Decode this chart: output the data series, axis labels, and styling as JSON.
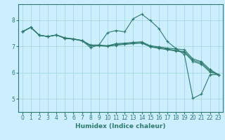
{
  "title": "",
  "xlabel": "Humidex (Indice chaleur)",
  "bg_color": "#cceeff",
  "line_color": "#2e7b6e",
  "marker_color": "#2e7b6e",
  "xlim": [
    -0.5,
    23.5
  ],
  "ylim": [
    4.5,
    8.6
  ],
  "yticks": [
    5,
    6,
    7,
    8
  ],
  "xticks": [
    0,
    1,
    2,
    3,
    4,
    5,
    6,
    7,
    8,
    9,
    10,
    11,
    12,
    13,
    14,
    15,
    16,
    17,
    18,
    19,
    20,
    21,
    22,
    23
  ],
  "grid_color": "#aadddd",
  "curves": [
    {
      "x": [
        0,
        1,
        2,
        3,
        4,
        5,
        6,
        7,
        8,
        9,
        10,
        11,
        12,
        13,
        14,
        15,
        16,
        17,
        18,
        19,
        20,
        21,
        22,
        23
      ],
      "y": [
        7.55,
        7.72,
        7.42,
        7.37,
        7.43,
        7.32,
        7.28,
        7.22,
        6.95,
        7.05,
        7.52,
        7.6,
        7.55,
        8.05,
        8.22,
        7.98,
        7.68,
        7.18,
        6.92,
        6.68,
        5.02,
        5.18,
        5.92,
        5.92
      ]
    },
    {
      "x": [
        0,
        1,
        2,
        3,
        4,
        5,
        6,
        7,
        8,
        9,
        10,
        11,
        12,
        13,
        14,
        15,
        16,
        17,
        18,
        19,
        20,
        21,
        22,
        23
      ],
      "y": [
        7.55,
        7.72,
        7.42,
        7.37,
        7.43,
        7.32,
        7.28,
        7.22,
        7.05,
        7.05,
        7.02,
        7.1,
        7.12,
        7.15,
        7.17,
        7.02,
        6.98,
        6.93,
        6.9,
        6.87,
        6.52,
        6.42,
        6.12,
        5.92
      ]
    },
    {
      "x": [
        0,
        1,
        2,
        3,
        4,
        5,
        6,
        7,
        8,
        9,
        10,
        11,
        12,
        13,
        14,
        15,
        16,
        17,
        18,
        19,
        20,
        21,
        22,
        23
      ],
      "y": [
        7.55,
        7.72,
        7.42,
        7.37,
        7.43,
        7.3,
        7.27,
        7.21,
        7.02,
        7.02,
        7.01,
        7.07,
        7.09,
        7.12,
        7.14,
        7.0,
        6.94,
        6.9,
        6.84,
        6.8,
        6.47,
        6.37,
        6.07,
        5.92
      ]
    },
    {
      "x": [
        0,
        1,
        2,
        3,
        4,
        5,
        6,
        7,
        8,
        9,
        10,
        11,
        12,
        13,
        14,
        15,
        16,
        17,
        18,
        19,
        20,
        21,
        22,
        23
      ],
      "y": [
        7.55,
        7.72,
        7.42,
        7.37,
        7.43,
        7.3,
        7.27,
        7.21,
        7.02,
        7.02,
        7.0,
        7.04,
        7.07,
        7.1,
        7.12,
        6.98,
        6.92,
        6.87,
        6.82,
        6.77,
        6.42,
        6.32,
        6.02,
        5.92
      ]
    }
  ]
}
